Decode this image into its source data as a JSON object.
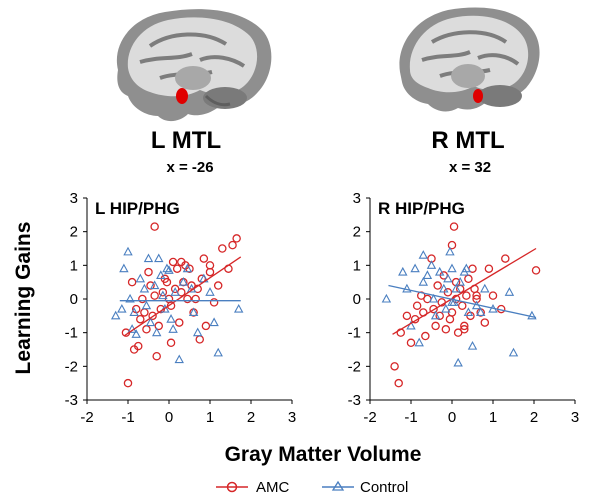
{
  "brains": [
    {
      "label": "L MTL",
      "coord": "x = -26"
    },
    {
      "label": "R MTL",
      "coord": "x = 32"
    }
  ],
  "colors": {
    "amc": "#d62728",
    "control": "#4a7fc0",
    "brain_gray": "#9a9a9a",
    "roi": "#e00000"
  },
  "legend": {
    "amc": "AMC",
    "control": "Control"
  },
  "chart_data": {
    "type": "scatter",
    "xlabel": "Gray Matter Volume",
    "ylabel": "Learning Gains",
    "xlim": [
      -2,
      3
    ],
    "ylim": [
      -3,
      3
    ],
    "xticks": [
      "-2",
      "-1",
      "0",
      "1",
      "2",
      "3"
    ],
    "yticks": [
      "-3",
      "-2",
      "-1",
      "0",
      "1",
      "2",
      "3"
    ],
    "grid": false,
    "legend_position": "bottom",
    "panels": [
      {
        "title": "L HIP/PHG",
        "series": [
          {
            "name": "AMC",
            "marker": "circle",
            "x": [
              -0.35,
              -1.0,
              -1.05,
              -0.85,
              -0.8,
              -0.75,
              -0.7,
              -0.65,
              -0.55,
              -0.5,
              -0.45,
              -0.4,
              -0.35,
              -0.3,
              -0.25,
              -0.2,
              -0.1,
              -0.05,
              0.0,
              0.05,
              0.1,
              0.15,
              0.2,
              0.25,
              0.3,
              0.35,
              0.4,
              0.45,
              0.5,
              0.55,
              0.6,
              0.7,
              0.75,
              0.8,
              0.85,
              0.9,
              1.0,
              1.1,
              1.2,
              1.3,
              1.45,
              1.55,
              1.65,
              -0.6,
              -0.9,
              0.05,
              0.3,
              0.65,
              -0.15,
              1.0
            ],
            "y": [
              2.15,
              -2.5,
              -1.0,
              -1.5,
              -0.3,
              -1.4,
              -0.6,
              0.0,
              -0.9,
              0.8,
              0.4,
              -0.5,
              0.1,
              -1.7,
              -0.8,
              -0.3,
              0.6,
              0.5,
              0.0,
              -0.2,
              1.1,
              0.3,
              0.9,
              -0.7,
              0.2,
              0.5,
              1.0,
              0.0,
              0.9,
              0.4,
              -0.4,
              0.3,
              -1.2,
              0.6,
              1.2,
              -0.8,
              0.8,
              -0.1,
              0.4,
              1.5,
              0.9,
              1.6,
              1.8,
              -0.4,
              0.5,
              -1.3,
              1.1,
              0.0,
              0.2,
              1.0
            ]
          },
          {
            "name": "Control",
            "marker": "triangle",
            "x": [
              -1.3,
              -1.15,
              -1.1,
              -1.0,
              -0.95,
              -0.9,
              -0.85,
              -0.7,
              -0.6,
              -0.55,
              -0.5,
              -0.45,
              -0.35,
              -0.3,
              -0.2,
              -0.15,
              -0.1,
              -0.05,
              0.0,
              0.05,
              0.1,
              0.15,
              0.25,
              0.35,
              0.45,
              0.6,
              0.7,
              0.85,
              1.0,
              1.1,
              1.2,
              1.7,
              -0.25,
              0.55,
              -0.8
            ],
            "y": [
              -0.5,
              -0.3,
              0.9,
              1.4,
              0.0,
              -0.9,
              -0.4,
              0.6,
              0.3,
              -0.2,
              1.2,
              -0.7,
              0.4,
              -1.0,
              0.7,
              0.1,
              -0.3,
              0.9,
              0.85,
              -0.6,
              -0.9,
              0.2,
              -1.8,
              0.5,
              0.9,
              -0.4,
              -1.0,
              0.6,
              0.2,
              -0.7,
              -1.6,
              -0.3,
              1.2,
              0.3,
              -1.05
            ]
          }
        ],
        "fits": [
          {
            "name": "AMC",
            "x": [
              -1.1,
              1.75
            ],
            "y": [
              -1.1,
              1.25
            ]
          },
          {
            "name": "Control",
            "x": [
              -1.2,
              1.75
            ],
            "y": [
              -0.05,
              -0.05
            ]
          }
        ]
      },
      {
        "title": "R HIP/PHG",
        "series": [
          {
            "name": "AMC",
            "marker": "circle",
            "x": [
              -1.4,
              -1.3,
              -1.25,
              -1.1,
              -1.0,
              -0.9,
              -0.85,
              -0.7,
              -0.65,
              -0.6,
              -0.5,
              -0.45,
              -0.4,
              -0.35,
              -0.3,
              -0.25,
              -0.2,
              -0.1,
              -0.05,
              0.0,
              0.05,
              0.1,
              0.15,
              0.2,
              0.25,
              0.3,
              0.35,
              0.4,
              0.45,
              0.5,
              0.55,
              0.6,
              0.7,
              0.8,
              0.9,
              1.0,
              1.2,
              1.3,
              2.05,
              -0.15,
              0.0,
              0.6,
              0.1,
              -0.75,
              0.3
            ],
            "y": [
              -2.0,
              -2.5,
              -1.0,
              -0.5,
              -1.3,
              -0.6,
              -0.2,
              -0.4,
              -1.1,
              0.0,
              1.2,
              -0.3,
              -0.8,
              0.4,
              -0.5,
              -0.1,
              0.7,
              0.2,
              -0.6,
              1.6,
              2.15,
              0.5,
              -1.0,
              0.3,
              -0.2,
              -0.8,
              0.1,
              0.6,
              -0.5,
              0.9,
              0.3,
              0.1,
              -0.4,
              -0.7,
              0.9,
              0.1,
              -0.3,
              1.2,
              0.85,
              -0.9,
              -0.4,
              0.0,
              0.0,
              0.1,
              -0.9
            ]
          },
          {
            "name": "Control",
            "marker": "triangle",
            "x": [
              -1.6,
              -1.2,
              -1.1,
              -1.0,
              -0.9,
              -0.8,
              -0.7,
              -0.6,
              -0.5,
              -0.45,
              -0.4,
              -0.3,
              -0.2,
              -0.15,
              -0.1,
              -0.05,
              0.0,
              0.05,
              0.1,
              0.15,
              0.2,
              0.3,
              0.4,
              0.5,
              0.6,
              0.7,
              0.8,
              1.0,
              1.4,
              1.5,
              1.95,
              -0.7,
              0.35,
              0.0
            ],
            "y": [
              0.0,
              0.8,
              0.3,
              -0.8,
              0.9,
              -1.3,
              0.5,
              0.7,
              1.0,
              0.0,
              -0.5,
              0.8,
              0.3,
              -0.3,
              0.6,
              1.4,
              0.9,
              -0.1,
              0.3,
              -1.9,
              0.5,
              0.8,
              -0.4,
              -1.4,
              -0.2,
              -0.4,
              0.3,
              -0.3,
              0.2,
              -1.6,
              -0.5,
              1.3,
              0.9,
              -0.1
            ]
          }
        ],
        "fits": [
          {
            "name": "AMC",
            "x": [
              -1.45,
              2.05
            ],
            "y": [
              -1.05,
              1.5
            ]
          },
          {
            "name": "Control",
            "x": [
              -1.55,
              2.05
            ],
            "y": [
              0.4,
              -0.55
            ]
          }
        ]
      }
    ]
  }
}
